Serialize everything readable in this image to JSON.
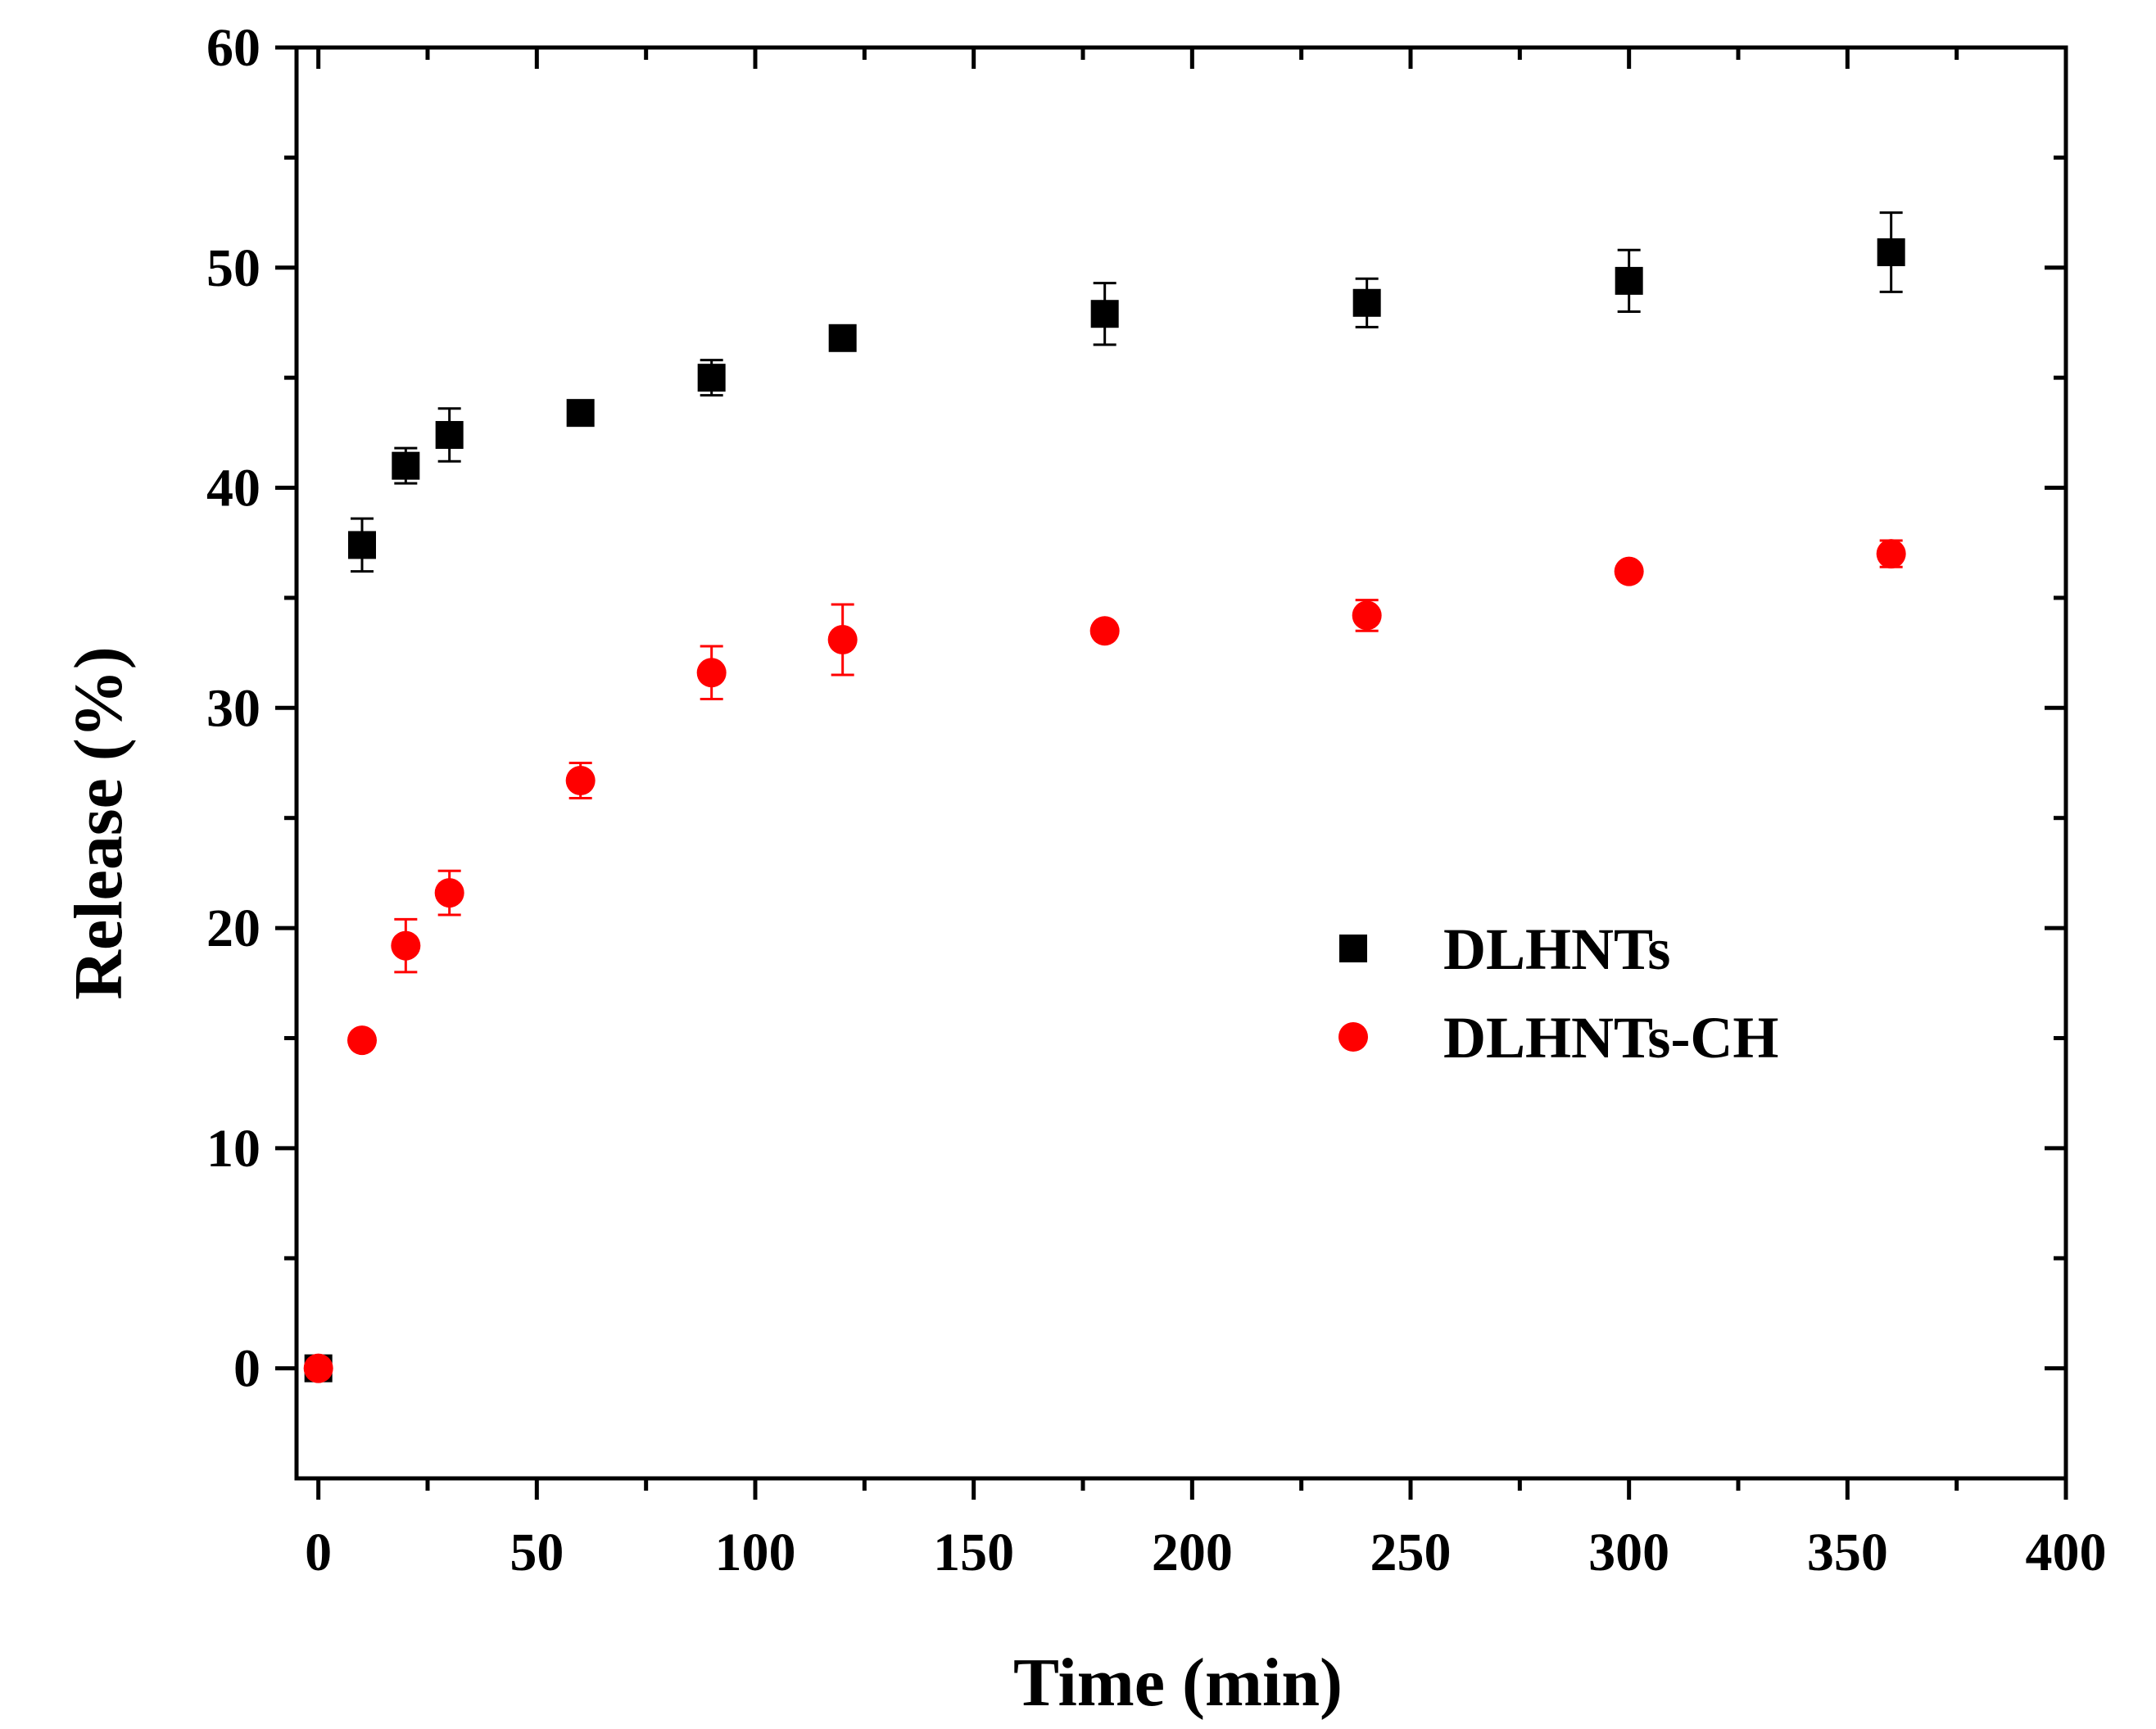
{
  "chart_data": {
    "type": "scatter",
    "title": "",
    "xlabel": "Time (min)",
    "ylabel": "Release (%)",
    "xlim": [
      -5,
      400
    ],
    "ylim": [
      -5,
      60
    ],
    "x_ticks": [
      0,
      50,
      100,
      150,
      200,
      250,
      300,
      350,
      400
    ],
    "y_ticks": [
      0,
      10,
      20,
      30,
      40,
      50,
      60
    ],
    "x_minor_ticks": [
      25,
      75,
      125,
      175,
      225,
      275,
      325,
      375
    ],
    "y_minor_ticks": [
      5,
      15,
      25,
      35,
      45,
      55
    ],
    "x_tick_labels": [
      "0",
      "50",
      "100",
      "150",
      "200",
      "250",
      "300",
      "350",
      "400"
    ],
    "y_tick_labels": [
      "0",
      "10",
      "20",
      "30",
      "40",
      "50",
      "60"
    ],
    "grid": false,
    "legend_position": "center-right",
    "series": [
      {
        "name": "DLHNTs",
        "marker": "square",
        "color": "#000000",
        "x": [
          0,
          10,
          20,
          30,
          60,
          90,
          120,
          180,
          240,
          300,
          360
        ],
        "y": [
          0,
          37.4,
          41.0,
          42.4,
          43.4,
          45.0,
          46.8,
          47.9,
          48.4,
          49.4,
          50.7
        ],
        "error": [
          0,
          1.2,
          0.8,
          1.2,
          0,
          0.8,
          0,
          1.4,
          1.1,
          1.4,
          1.8
        ]
      },
      {
        "name": "DLHNTs-CH",
        "marker": "circle",
        "color": "#ff0000",
        "x": [
          0,
          10,
          20,
          30,
          60,
          90,
          120,
          180,
          240,
          300,
          360
        ],
        "y": [
          0,
          14.9,
          19.2,
          21.6,
          26.7,
          31.6,
          33.1,
          33.5,
          34.2,
          36.2,
          37.0
        ],
        "error": [
          0,
          0,
          1.2,
          1.0,
          0.8,
          1.2,
          1.6,
          0,
          0.7,
          0,
          0.6
        ]
      }
    ]
  }
}
